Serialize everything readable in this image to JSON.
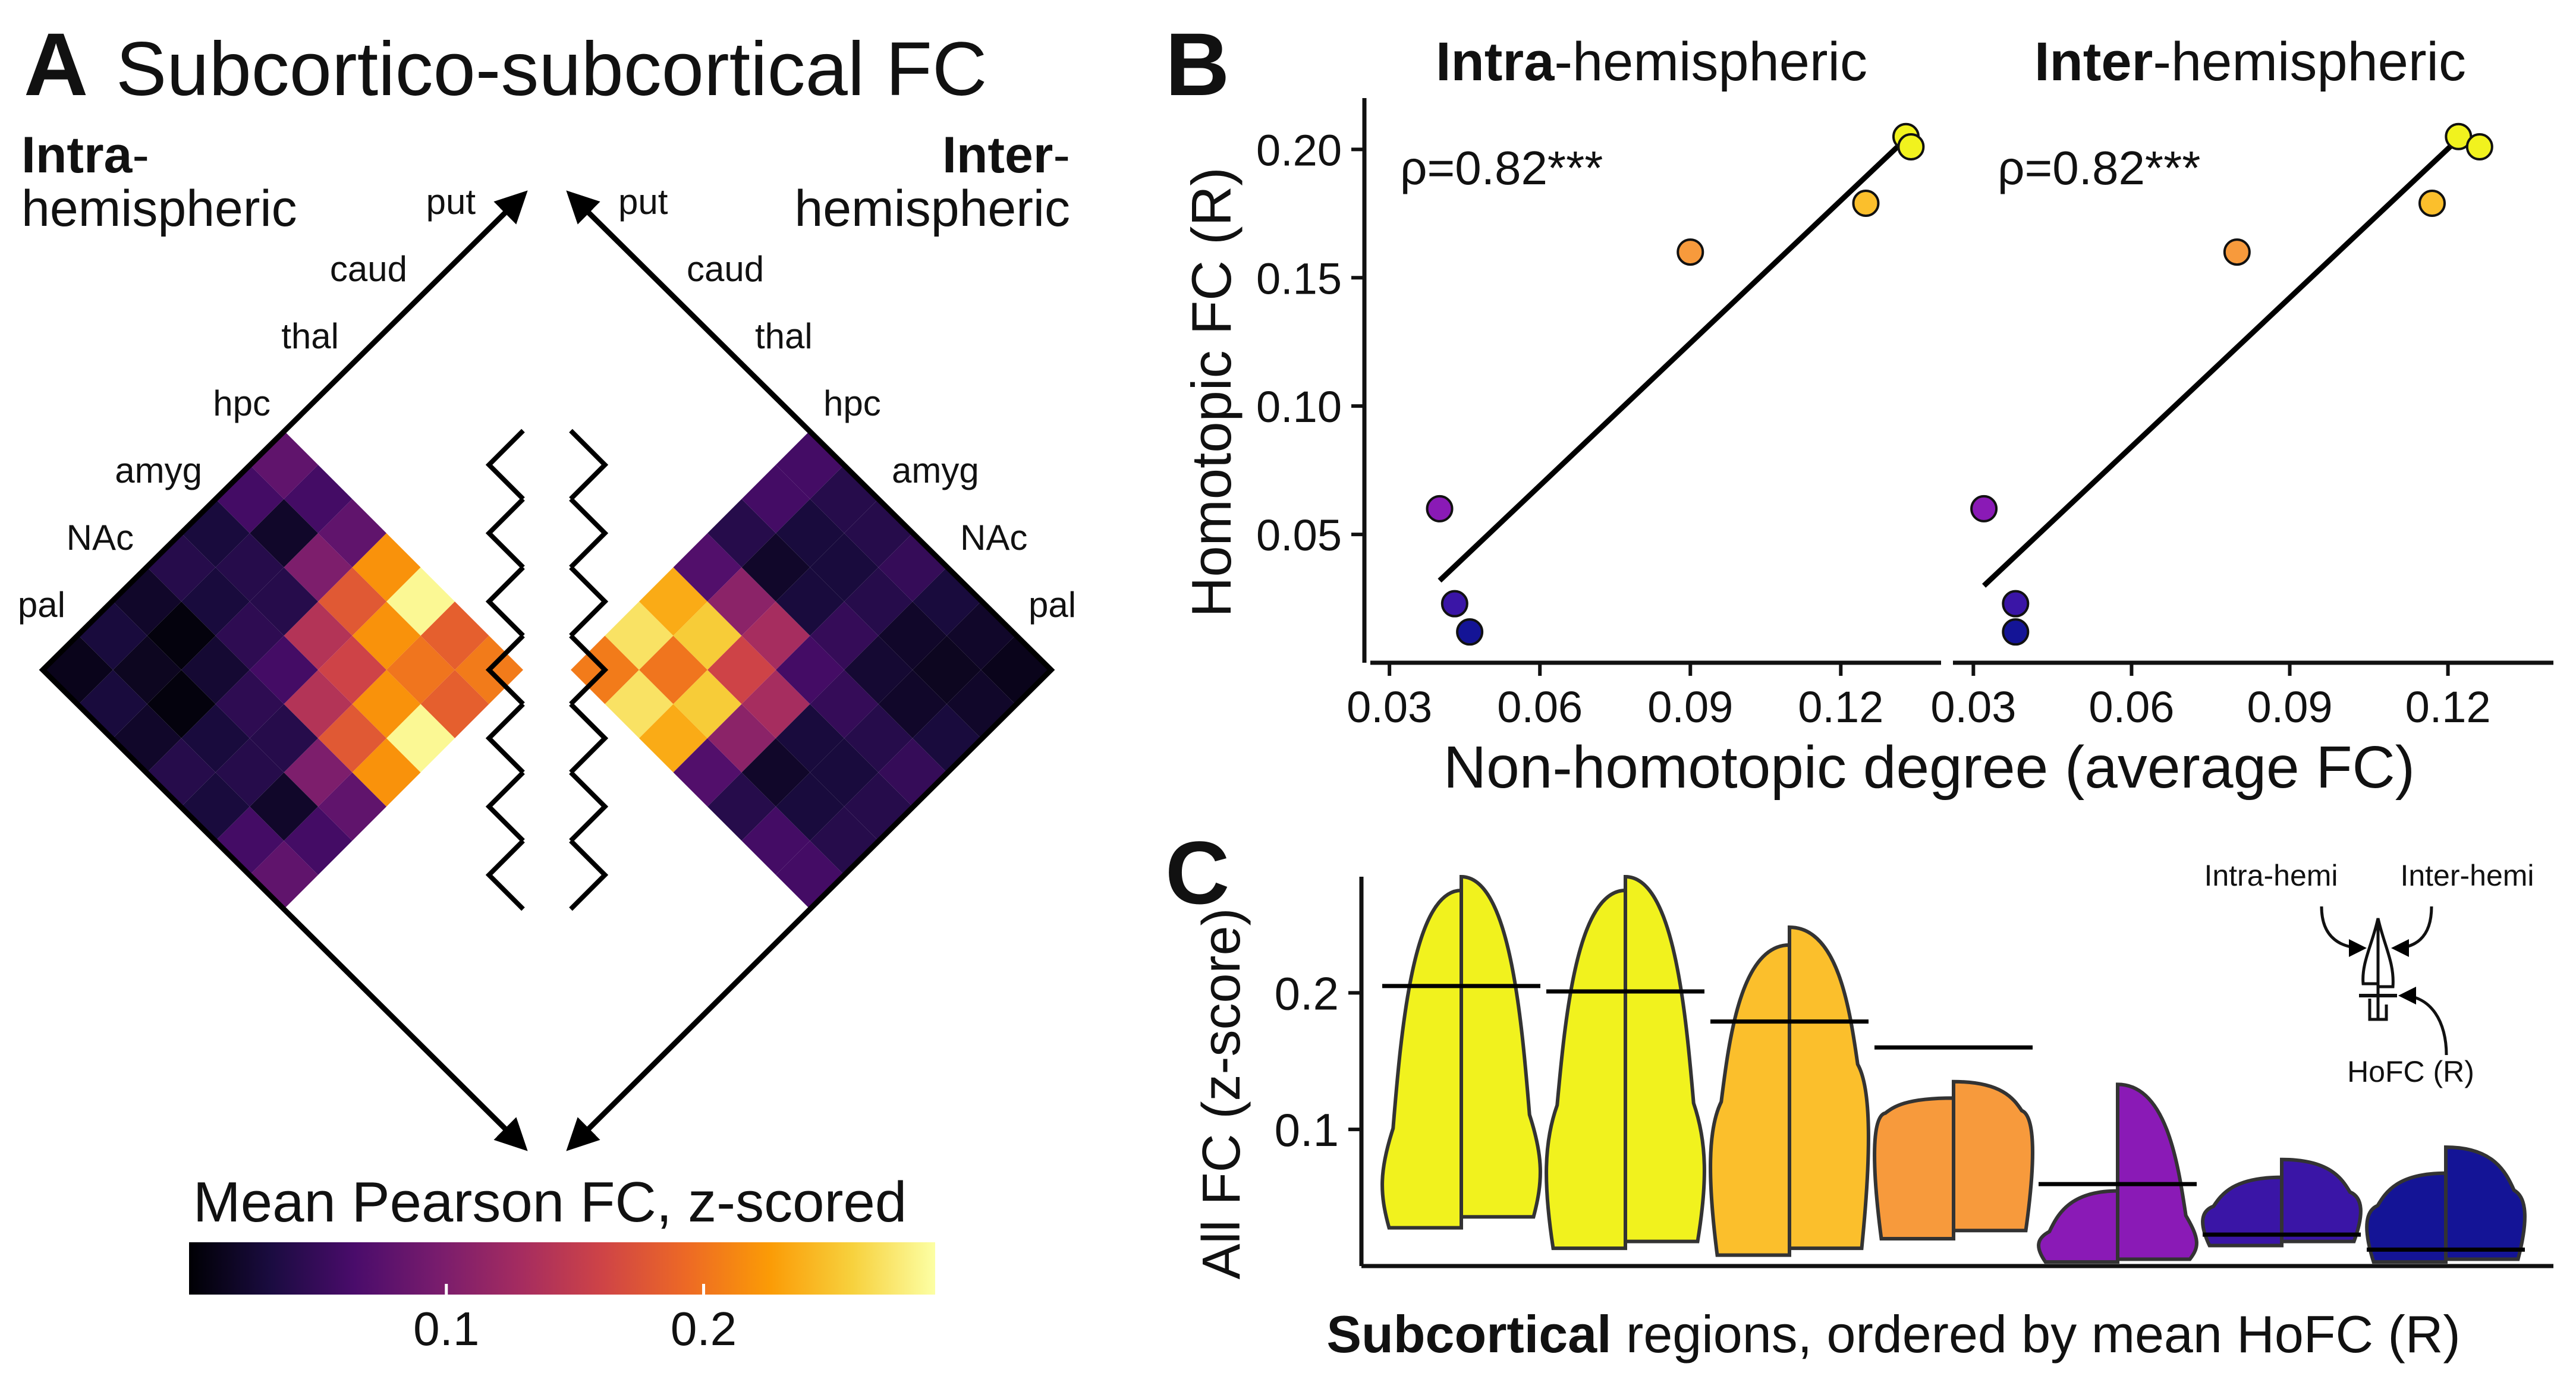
{
  "figure": {
    "colors": {
      "inferno_stops": [
        "#000004",
        "#1b0c41",
        "#4a0c6b",
        "#781c6d",
        "#a52c60",
        "#cf4446",
        "#ed6925",
        "#fb9b06",
        "#f7d13d",
        "#fcffa4"
      ],
      "line": "#000000",
      "ink": "#111111"
    },
    "panel_a": {
      "letter": "A",
      "title": "Subcortico-subcortical FC",
      "left_label_bold": "Intra",
      "left_label_line1_rest": "-",
      "left_label_line2": "hemispheric",
      "right_label_bold": "Inter",
      "right_label_line1_rest": "-",
      "right_label_line2": "hemispheric",
      "regions": [
        "put",
        "caud",
        "thal",
        "hpc",
        "amyg",
        "NAc",
        "pal"
      ],
      "colorbar_title": "Mean Pearson FC, z-scored",
      "colorbar_ticks": [
        "0.1",
        "0.2"
      ],
      "colorbar_range": [
        0.0,
        0.29
      ],
      "intra_matrix": [
        [
          0.205,
          0.185,
          0.285,
          0.22,
          0.08,
          0.06,
          0.08
        ],
        [
          0.185,
          0.201,
          0.22,
          0.179,
          0.1,
          0.02,
          0.06
        ],
        [
          0.285,
          0.22,
          0.16,
          0.14,
          0.04,
          0.04,
          0.03
        ],
        [
          0.22,
          0.179,
          0.14,
          0.06,
          0.045,
          0.03,
          0.04
        ],
        [
          0.08,
          0.1,
          0.04,
          0.045,
          0.025,
          0.005,
          0.02
        ],
        [
          0.06,
          0.02,
          0.04,
          0.03,
          0.005,
          0.015,
          0.03
        ],
        [
          0.08,
          0.06,
          0.03,
          0.04,
          0.02,
          0.03,
          0.012
        ]
      ],
      "inter_matrix": [
        [
          0.205,
          0.27,
          0.235,
          0.07,
          0.04,
          0.06,
          0.06
        ],
        [
          0.27,
          0.201,
          0.255,
          0.11,
          0.02,
          0.03,
          0.04
        ],
        [
          0.235,
          0.255,
          0.16,
          0.13,
          0.03,
          0.03,
          0.04
        ],
        [
          0.07,
          0.11,
          0.13,
          0.06,
          0.05,
          0.04,
          0.05
        ],
        [
          0.04,
          0.02,
          0.03,
          0.05,
          0.025,
          0.02,
          0.03
        ],
        [
          0.06,
          0.03,
          0.03,
          0.04,
          0.02,
          0.015,
          0.02
        ],
        [
          0.06,
          0.04,
          0.04,
          0.05,
          0.03,
          0.02,
          0.012
        ]
      ]
    },
    "panel_b": {
      "letter": "B",
      "ylabel": "Homotopic FC (R)",
      "xlabel": "Non-homotopic degree (average FC)",
      "subplots": [
        {
          "title_bold": "Intra",
          "title_rest": "-hemispheric",
          "annotation": "ρ=0.82***"
        },
        {
          "title_bold": "Inter",
          "title_rest": "-hemispheric",
          "annotation": "ρ=0.82***"
        }
      ]
    },
    "panel_c": {
      "letter": "C",
      "ylabel": "All FC (z-score)",
      "xlabel_bold": "Subcortical",
      "xlabel_rest": " regions, ordered by mean HoFC (R)",
      "legend": {
        "intra": "Intra-hemi",
        "inter": "Inter-hemi",
        "hofc": "HoFC (R)"
      }
    }
  },
  "chart_data": [
    {
      "type": "heatmap",
      "title": "Subcortico-subcortical FC",
      "panels": [
        "Intra-hemispheric",
        "Inter-hemispheric"
      ],
      "rows": [
        "put",
        "caud",
        "thal",
        "hpc",
        "amyg",
        "NAc",
        "pal"
      ],
      "colorbar_label": "Mean Pearson FC, z-scored",
      "colorbar_ticks": [
        0.1,
        0.2
      ]
    },
    {
      "type": "scatter",
      "title": "Intra-hemispheric",
      "xlabel": "Non-homotopic degree (average FC)",
      "ylabel": "Homotopic FC (R)",
      "xlim": [
        0.025,
        0.14
      ],
      "ylim": [
        0.0,
        0.22
      ],
      "xticks": [
        0.03,
        0.06,
        0.09,
        0.12
      ],
      "yticks": [
        0.05,
        0.1,
        0.15,
        0.2
      ],
      "annotation": "ρ=0.82***",
      "points": [
        {
          "x": 0.133,
          "y": 0.205,
          "color": "#f1f21e"
        },
        {
          "x": 0.134,
          "y": 0.201,
          "color": "#f1f21e"
        },
        {
          "x": 0.125,
          "y": 0.179,
          "color": "#fbbf2c"
        },
        {
          "x": 0.09,
          "y": 0.16,
          "color": "#f79a3c"
        },
        {
          "x": 0.04,
          "y": 0.06,
          "color": "#8a1ab6"
        },
        {
          "x": 0.043,
          "y": 0.023,
          "color": "#3a15a6"
        },
        {
          "x": 0.046,
          "y": 0.012,
          "color": "#141496"
        }
      ],
      "fit_line": {
        "x": [
          0.04,
          0.134
        ],
        "y": [
          0.032,
          0.206
        ]
      }
    },
    {
      "type": "scatter",
      "title": "Inter-hemispheric",
      "xlabel": "Non-homotopic degree (average FC)",
      "ylabel": "Homotopic FC (R)",
      "xlim": [
        0.025,
        0.14
      ],
      "ylim": [
        0.0,
        0.22
      ],
      "xticks": [
        0.03,
        0.06,
        0.09,
        0.12
      ],
      "yticks": [
        0.05,
        0.1,
        0.15,
        0.2
      ],
      "annotation": "ρ=0.82***",
      "points": [
        {
          "x": 0.122,
          "y": 0.205,
          "color": "#f1f21e"
        },
        {
          "x": 0.126,
          "y": 0.201,
          "color": "#f1f21e"
        },
        {
          "x": 0.117,
          "y": 0.179,
          "color": "#fbbf2c"
        },
        {
          "x": 0.08,
          "y": 0.16,
          "color": "#f79a3c"
        },
        {
          "x": 0.032,
          "y": 0.06,
          "color": "#8a1ab6"
        },
        {
          "x": 0.038,
          "y": 0.023,
          "color": "#3a15a6"
        },
        {
          "x": 0.038,
          "y": 0.012,
          "color": "#141496"
        }
      ],
      "fit_line": {
        "x": [
          0.032,
          0.124
        ],
        "y": [
          0.03,
          0.208
        ]
      }
    },
    {
      "type": "violin",
      "ylabel": "All FC (z-score)",
      "xlabel": "Subcortical regions, ordered by mean HoFC (R)",
      "ylim": [
        0.0,
        0.285
      ],
      "yticks": [
        0.1,
        0.2
      ],
      "groups": [
        {
          "color": "#f1f21e",
          "hofc": 0.205,
          "intra": {
            "min": 0.028,
            "max": 0.275,
            "widest": 0.07
          },
          "inter": {
            "min": 0.036,
            "max": 0.285,
            "widest": 0.08
          }
        },
        {
          "color": "#f1f21e",
          "hofc": 0.201,
          "intra": {
            "min": 0.013,
            "max": 0.275,
            "widest": 0.09
          },
          "inter": {
            "min": 0.018,
            "max": 0.285,
            "widest": 0.09
          }
        },
        {
          "color": "#fbbf2c",
          "hofc": 0.179,
          "intra": {
            "min": 0.008,
            "max": 0.235,
            "widest": 0.1
          },
          "inter": {
            "min": 0.013,
            "max": 0.248,
            "widest": 0.13
          }
        },
        {
          "color": "#f79a3c",
          "hofc": 0.16,
          "intra": {
            "min": 0.02,
            "max": 0.123,
            "widest": 0.11
          },
          "inter": {
            "min": 0.026,
            "max": 0.135,
            "widest": 0.11
          }
        },
        {
          "color": "#8a1ab6",
          "hofc": 0.06,
          "intra": {
            "min": 0.003,
            "max": 0.055,
            "widest": 0.02
          },
          "inter": {
            "min": 0.005,
            "max": 0.133,
            "widest": 0.02
          }
        },
        {
          "color": "#3a15a6",
          "hofc": 0.023,
          "intra": {
            "min": 0.015,
            "max": 0.065,
            "widest": 0.04
          },
          "inter": {
            "min": 0.018,
            "max": 0.078,
            "widest": 0.05
          }
        },
        {
          "color": "#141496",
          "hofc": 0.012,
          "intra": {
            "min": 0.003,
            "max": 0.068,
            "widest": 0.04
          },
          "inter": {
            "min": 0.005,
            "max": 0.087,
            "widest": 0.05
          }
        }
      ]
    }
  ]
}
